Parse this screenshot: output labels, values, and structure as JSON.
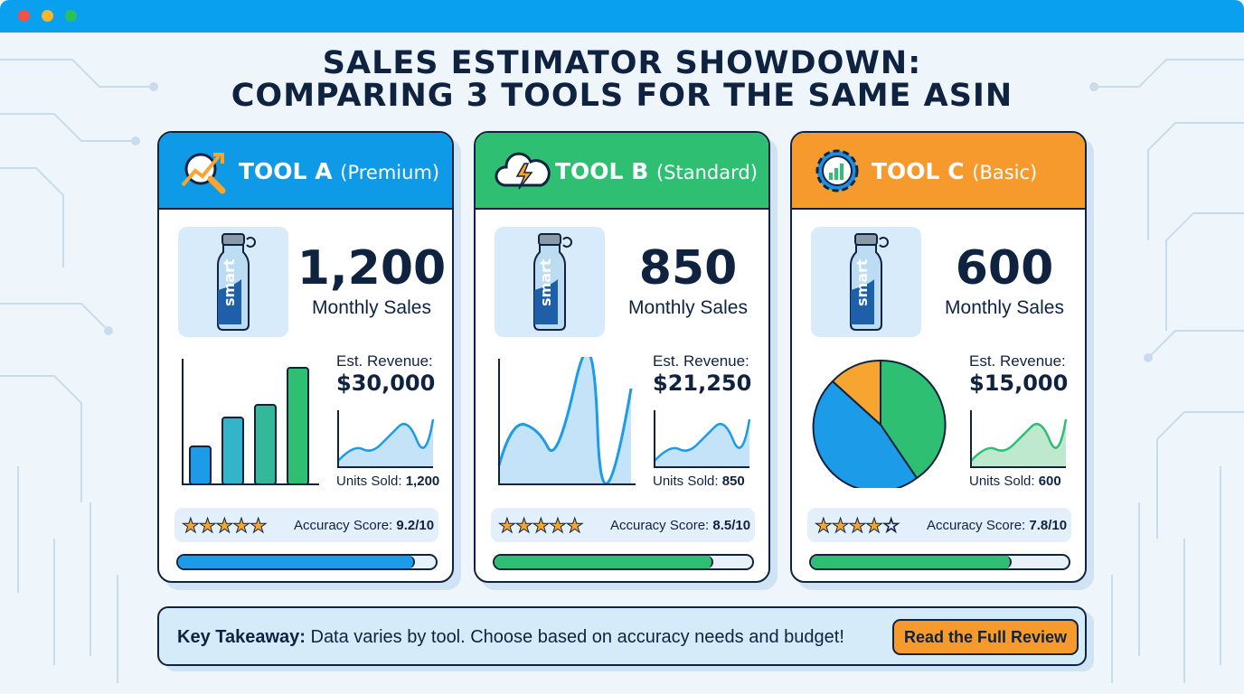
{
  "window": {
    "dot_colors": [
      "#f0524a",
      "#f7b52e",
      "#2cc05c"
    ],
    "bar_color": "#0aa0f0"
  },
  "title": {
    "line1": "SALES ESTIMATOR SHOWDOWN:",
    "line2": "COMPARING 3 TOOLS FOR THE SAME ASIN"
  },
  "product": {
    "label": "smart"
  },
  "tools": [
    {
      "name": "TOOL A",
      "tier": "(Premium)",
      "color": "#0f9ae8",
      "icon": "magnifier-trend-icon",
      "monthly_sales": "1,200",
      "monthly_label": "Monthly Sales",
      "revenue_label": "Est. Revenue:",
      "revenue": "$30,000",
      "units_label": "Units Sold:",
      "units": "1,200",
      "accuracy_label": "Accuracy Score:",
      "accuracy": "9.2/10",
      "accuracy_fraction": 0.92,
      "stars": 4.5,
      "chart": "bar"
    },
    {
      "name": "TOOL B",
      "tier": "(Standard)",
      "color": "#2fbf73",
      "icon": "cloud-lightning-icon",
      "monthly_sales": "850",
      "monthly_label": "Monthly Sales",
      "revenue_label": "Est. Revenue:",
      "revenue": "$21,250",
      "units_label": "Units Sold:",
      "units": "850",
      "accuracy_label": "Accuracy Score:",
      "accuracy": "8.5/10",
      "accuracy_fraction": 0.85,
      "stars": 4.5,
      "chart": "line"
    },
    {
      "name": "TOOL C",
      "tier": "(Basic)",
      "color": "#f79a2e",
      "icon": "gear-chart-icon",
      "monthly_sales": "600",
      "monthly_label": "Monthly Sales",
      "revenue_label": "Est. Revenue:",
      "revenue": "$15,000",
      "units_label": "Units Sold:",
      "units": "600",
      "accuracy_label": "Accuracy Score:",
      "accuracy": "7.8/10",
      "accuracy_fraction": 0.78,
      "stars": 4,
      "chart": "pie"
    }
  ],
  "footer": {
    "takeaway_label": "Key Takeaway:",
    "takeaway_text": " Data varies by tool. Choose based on accuracy needs and budget!",
    "button": "Read the Full Review"
  }
}
